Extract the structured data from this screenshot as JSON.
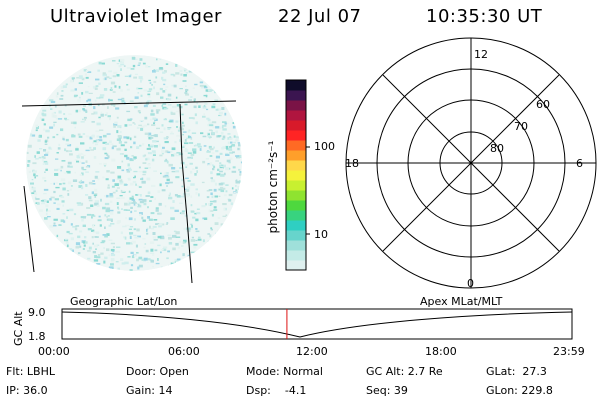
{
  "header": {
    "title": "Ultraviolet Imager",
    "date": "22 Jul 07",
    "time": "10:35:30 UT"
  },
  "colorbar": {
    "unit_label": "photon cm⁻²s⁻¹",
    "ticks": [
      "100",
      "10"
    ],
    "colors": [
      "#dff0ef",
      "#c4ebe7",
      "#9fe0da",
      "#67d4cc",
      "#2fcfc2",
      "#38d37f",
      "#4ed83e",
      "#8fe330",
      "#c8f030",
      "#f5f23c",
      "#ffd84a",
      "#ff9f2a",
      "#ff6a24",
      "#ff2424",
      "#d81a2a",
      "#b0153f",
      "#7a1346",
      "#3b1550",
      "#0f0c2a"
    ]
  },
  "polar": {
    "mlt_labels": [
      "12",
      "18",
      "6",
      "0"
    ],
    "lat_labels": [
      "60",
      "70",
      "80"
    ]
  },
  "timeline": {
    "ylabel": "GC Alt",
    "yticks": [
      "9.0",
      "1.8"
    ],
    "left_title": "Geographic Lat/Lon",
    "right_title": "Apex  MLat/MLT",
    "xticks": [
      "00:00",
      "06:00",
      "12:00",
      "18:00",
      "23:59"
    ],
    "current_time_fraction": 0.441
  },
  "status": {
    "flt": "Flt: LBHL",
    "ip": "IP: 36.0",
    "door": "Door: Open",
    "gain": "Gain: 14",
    "mode": "Mode: Normal",
    "dsp": "Dsp:    -4.1",
    "gcalt": "GC Alt: 2.7 Re",
    "seq": "Seq: 39",
    "glat": "GLat:  27.3",
    "glon": "GLon: 229.8"
  }
}
